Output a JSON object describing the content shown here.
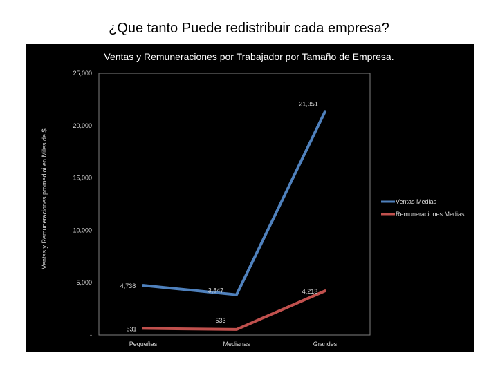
{
  "slide": {
    "title": "¿Que tanto Puede redistribuir cada empresa?"
  },
  "chart_data": {
    "type": "line",
    "title": "Ventas y Remuneraciones por Trabajador por Tamaño de Empresa.",
    "xlabel": "",
    "ylabel": "Ventas y Remuneraciones promedioi en Miles de $",
    "categories": [
      "Pequeñas",
      "Medianas",
      "Grandes"
    ],
    "ylim": [
      0,
      25000
    ],
    "yticks": [
      0,
      5000,
      10000,
      15000,
      20000,
      25000
    ],
    "ytick_labels": [
      "-",
      "5,000",
      "10,000",
      "15,000",
      "20,000",
      "25,000"
    ],
    "grid": false,
    "legend_position": "right",
    "series": [
      {
        "name": "Ventas Medias",
        "color": "#4f81bd",
        "values": [
          4738,
          3847,
          21351
        ],
        "labels": [
          "4,738",
          "3,847",
          "21,351"
        ]
      },
      {
        "name": "Remuneraciones Medias",
        "color": "#c0504d",
        "values": [
          631,
          533,
          4213
        ],
        "labels": [
          "631",
          "533",
          "4,213"
        ]
      }
    ]
  }
}
